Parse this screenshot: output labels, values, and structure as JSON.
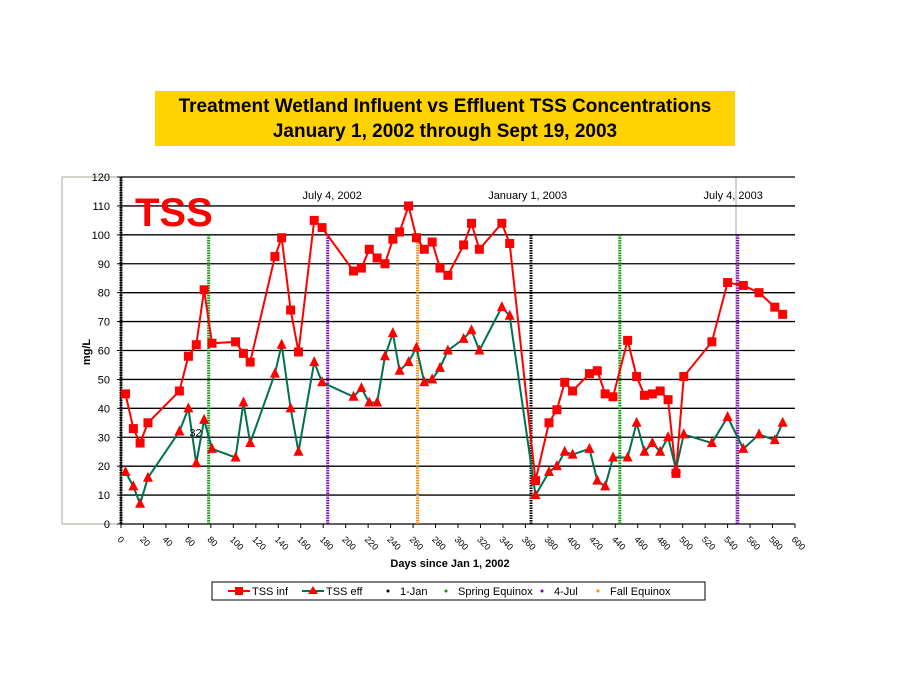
{
  "chart_data": {
    "type": "line",
    "title": "Treatment Wetland Influent vs Effluent TSS Concentrations",
    "subtitle": "January 1, 2002 through Sept 19, 2003",
    "badge": "TSS",
    "xlabel": "Days since Jan 1, 2002",
    "ylabel": "mg/L",
    "xlim": [
      0,
      600
    ],
    "ylim": [
      0,
      120
    ],
    "xticks": [
      0,
      20,
      40,
      60,
      80,
      100,
      120,
      140,
      160,
      180,
      200,
      220,
      240,
      260,
      280,
      300,
      320,
      340,
      360,
      380,
      400,
      420,
      440,
      460,
      480,
      500,
      520,
      540,
      560,
      580,
      600
    ],
    "yticks": [
      0,
      10,
      20,
      30,
      40,
      50,
      60,
      70,
      80,
      90,
      100,
      110,
      120
    ],
    "grid": true,
    "x": [
      4,
      11,
      17,
      24,
      52,
      60,
      67,
      74,
      81,
      102,
      109,
      115,
      137,
      143,
      151,
      158,
      172,
      179,
      207,
      214,
      221,
      228,
      235,
      242,
      248,
      256,
      263,
      270,
      277,
      284,
      291,
      305,
      312,
      319,
      339,
      346,
      369,
      381,
      388,
      395,
      402,
      417,
      424,
      431,
      438,
      451,
      459,
      466,
      473,
      480,
      487,
      494,
      501,
      526,
      540,
      554,
      568,
      582,
      589
    ],
    "series": [
      {
        "name": "TSS inf",
        "color": "#FF0000",
        "marker": "square",
        "values": [
          45,
          33,
          28,
          35,
          46,
          58,
          62,
          81,
          62.5,
          63,
          59,
          56,
          92.5,
          99,
          74,
          59.5,
          105,
          102.5,
          87.5,
          88.5,
          95,
          92,
          90,
          98.5,
          101,
          110,
          99,
          95,
          97.5,
          88.5,
          86,
          96.5,
          104,
          95,
          104,
          97,
          15,
          35,
          39.5,
          49,
          46,
          52,
          53,
          45,
          44,
          63.5,
          51,
          44.5,
          45,
          46,
          43,
          17.5,
          51,
          63,
          83.5,
          82.5,
          80,
          75,
          72.5
        ]
      },
      {
        "name": "TSS eff",
        "color": "#007050",
        "marker": "triangle",
        "values": [
          18,
          13,
          7,
          16,
          32,
          40,
          21,
          36,
          26,
          23,
          42,
          28,
          52,
          62,
          40,
          25,
          56,
          49,
          44,
          47,
          42,
          42,
          58,
          66,
          53,
          56,
          61,
          49,
          50,
          54,
          60,
          64,
          67,
          60,
          75,
          72,
          10,
          18,
          20,
          25,
          24,
          26,
          15,
          13,
          23,
          23,
          35,
          25,
          28,
          25,
          30,
          19,
          31,
          28,
          37,
          26,
          31,
          29,
          35
        ]
      }
    ],
    "data_labels": [
      {
        "series": "TSS eff",
        "x": 52,
        "text": "32"
      }
    ],
    "reference_lines": [
      {
        "name": "1-Jan",
        "color": "#000000",
        "x": [
          0,
          365
        ]
      },
      {
        "name": "Spring Equinox",
        "color": "#009900",
        "x": [
          78,
          444
        ]
      },
      {
        "name": "4-Jul",
        "color": "#7700BB",
        "x": [
          184,
          549
        ]
      },
      {
        "name": "Fall Equinox",
        "color": "#FF8800",
        "x": [
          264
        ]
      }
    ],
    "annotations": [
      {
        "text": "July 4, 2002",
        "x": 188
      },
      {
        "text": "January 1, 2003",
        "x": 362
      },
      {
        "text": "July 4, 2003",
        "x": 545
      }
    ],
    "legend": {
      "placement": "bottom",
      "entries": [
        "TSS inf",
        "TSS eff",
        "1-Jan",
        "Spring Equinox",
        "4-Jul",
        "Fall Equinox"
      ]
    }
  }
}
